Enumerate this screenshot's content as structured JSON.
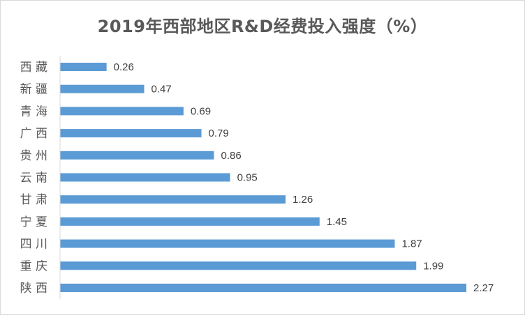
{
  "chart_data": {
    "type": "bar",
    "orientation": "horizontal",
    "title": "2019年西部地区R&D经费投入强度（%）",
    "categories": [
      "西 藏",
      "新 疆",
      "青 海",
      "广 西",
      "贵 州",
      "云 南",
      "甘 肃",
      "宁 夏",
      "四 川",
      "重 庆",
      "陕 西"
    ],
    "values": [
      0.26,
      0.47,
      0.69,
      0.79,
      0.86,
      0.95,
      1.26,
      1.45,
      1.87,
      1.99,
      2.27
    ],
    "value_labels": [
      "0.26",
      "0.47",
      "0.69",
      "0.79",
      "0.86",
      "0.95",
      "1.26",
      "1.45",
      "1.87",
      "1.99",
      "2.27"
    ],
    "xlim": [
      0,
      2.4
    ],
    "grid": false,
    "legend": "none",
    "bar_color": "#5b9bd5"
  }
}
